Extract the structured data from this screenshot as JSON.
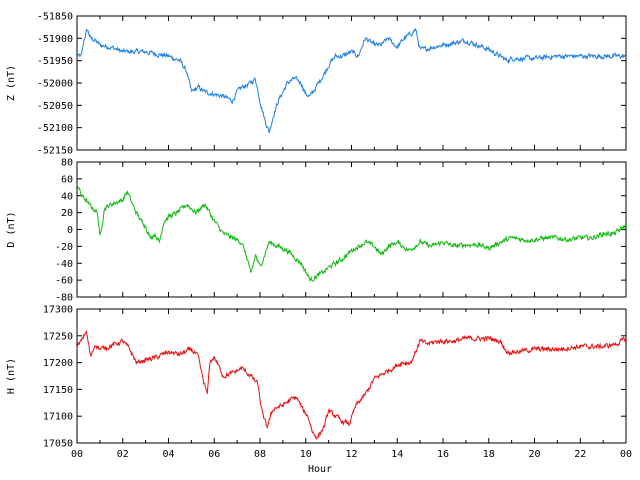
{
  "x_axis": {
    "label": "Hour",
    "ticks": [
      "00",
      "02",
      "04",
      "06",
      "08",
      "10",
      "12",
      "14",
      "16",
      "18",
      "20",
      "22",
      "00"
    ],
    "range": [
      0,
      24
    ]
  },
  "chart_data": [
    {
      "type": "line",
      "ylabel": "Z (nT)",
      "ylim": [
        -52150,
        -51850
      ],
      "yticks": [
        "-51850",
        "-51900",
        "-51950",
        "-52000",
        "-52050",
        "-52100",
        "-52150"
      ],
      "color": "#1f7fe0",
      "series": [
        {
          "x": [
            0,
            0.2,
            0.3,
            0.45,
            0.6,
            0.8,
            1.0,
            1.5,
            2,
            3,
            3.5,
            4,
            4.5,
            4.8,
            5.0,
            5.3,
            5.6,
            6,
            6.4,
            6.8,
            7.0,
            7.2,
            7.6,
            7.8,
            8.0,
            8.2,
            8.4,
            8.6,
            8.8,
            9.0,
            9.2,
            9.5,
            9.8,
            10.0,
            10.2,
            10.5,
            10.8,
            11.0,
            11.3,
            11.6,
            12.0,
            12.3,
            12.6,
            13.0,
            13.3,
            13.6,
            14.0,
            14.3,
            14.6,
            14.8,
            15.0,
            15.2,
            15.5,
            16,
            16.5,
            17,
            17.5,
            18,
            18.5,
            18.8,
            19,
            20,
            21,
            22,
            23,
            23.5,
            24
          ],
          "y": [
            -51940,
            -51940,
            -51905,
            -51880,
            -51900,
            -51905,
            -51915,
            -51920,
            -51930,
            -51930,
            -51935,
            -51940,
            -51950,
            -51975,
            -52020,
            -52010,
            -52020,
            -52025,
            -52030,
            -52040,
            -52020,
            -52010,
            -52000,
            -51990,
            -52040,
            -52080,
            -52110,
            -52070,
            -52040,
            -52020,
            -52000,
            -51990,
            -52000,
            -52025,
            -52030,
            -52005,
            -51980,
            -51960,
            -51940,
            -51940,
            -51930,
            -51940,
            -51900,
            -51915,
            -51915,
            -51900,
            -51920,
            -51900,
            -51890,
            -51880,
            -51925,
            -51925,
            -51920,
            -51915,
            -51910,
            -51905,
            -51915,
            -51925,
            -51940,
            -51950,
            -51945,
            -51945,
            -51940,
            -51940,
            -51940,
            -51940,
            -51940
          ]
        }
      ]
    },
    {
      "type": "line",
      "ylabel": "D (nT)",
      "ylim": [
        -80,
        80
      ],
      "yticks": [
        "80",
        "60",
        "40",
        "20",
        "0",
        "-20",
        "-40",
        "-60",
        "-80"
      ],
      "color": "#12b812",
      "series": [
        {
          "x": [
            0,
            0.2,
            0.4,
            0.5,
            0.7,
            0.9,
            1.0,
            1.2,
            1.5,
            2,
            2.2,
            2.5,
            2.8,
            3,
            3.2,
            3.4,
            3.6,
            3.8,
            4,
            4.4,
            4.8,
            5.2,
            5.6,
            6,
            6.4,
            6.8,
            7.2,
            7.5,
            7.6,
            7.8,
            8.0,
            8.2,
            8.4,
            8.8,
            9.2,
            9.6,
            9.8,
            10,
            10.2,
            10.5,
            10.8,
            11.0,
            11.3,
            11.6,
            12,
            12.3,
            12.6,
            13,
            13.3,
            13.6,
            14,
            14.5,
            15,
            15.5,
            16,
            16.5,
            17,
            17.5,
            18,
            18.5,
            19,
            19.5,
            20,
            20.5,
            21,
            21.5,
            22,
            22.5,
            23,
            23.5,
            24
          ],
          "y": [
            55,
            40,
            35,
            30,
            25,
            20,
            -10,
            25,
            30,
            35,
            45,
            25,
            10,
            5,
            -10,
            -5,
            -15,
            10,
            15,
            20,
            30,
            20,
            30,
            10,
            -5,
            -10,
            -15,
            -40,
            -55,
            -30,
            -45,
            -30,
            -15,
            -20,
            -25,
            -35,
            -40,
            -50,
            -60,
            -55,
            -50,
            -45,
            -40,
            -35,
            -25,
            -20,
            -15,
            -20,
            -30,
            -20,
            -15,
            -25,
            -15,
            -20,
            -15,
            -20,
            -18,
            -18,
            -22,
            -15,
            -10,
            -12,
            -12,
            -10,
            -10,
            -12,
            -10,
            -10,
            -5,
            -5,
            5
          ]
        }
      ]
    },
    {
      "type": "line",
      "ylabel": "H (nT)",
      "ylim": [
        17050,
        17300
      ],
      "yticks": [
        "17300",
        "17250",
        "17200",
        "17150",
        "17100",
        "17050"
      ],
      "color": "#e81010",
      "series": [
        {
          "x": [
            0,
            0.2,
            0.4,
            0.6,
            0.8,
            1.0,
            1.4,
            2,
            2.3,
            2.6,
            3,
            3.5,
            4,
            4.5,
            5,
            5.3,
            5.5,
            5.7,
            5.8,
            6,
            6.4,
            6.8,
            7.2,
            7.6,
            7.9,
            8.1,
            8.3,
            8.6,
            9,
            9.3,
            9.6,
            9.9,
            10.1,
            10.3,
            10.5,
            10.8,
            11.0,
            11.3,
            11.6,
            11.9,
            12.2,
            12.6,
            13,
            13.4,
            13.8,
            14.2,
            14.6,
            15,
            15.3,
            15.8,
            16.5,
            17,
            17.5,
            18,
            18.5,
            18.8,
            19.2,
            20,
            21,
            22,
            23,
            23.6,
            24
          ],
          "y": [
            17230,
            17240,
            17260,
            17210,
            17235,
            17225,
            17230,
            17240,
            17225,
            17200,
            17205,
            17210,
            17220,
            17215,
            17225,
            17210,
            17170,
            17140,
            17200,
            17210,
            17175,
            17180,
            17190,
            17175,
            17160,
            17105,
            17080,
            17115,
            17120,
            17130,
            17135,
            17110,
            17100,
            17070,
            17060,
            17080,
            17110,
            17100,
            17090,
            17085,
            17120,
            17140,
            17170,
            17180,
            17190,
            17200,
            17200,
            17240,
            17235,
            17240,
            17240,
            17245,
            17245,
            17245,
            17240,
            17220,
            17220,
            17225,
            17225,
            17230,
            17230,
            17235,
            17245
          ]
        }
      ]
    }
  ]
}
